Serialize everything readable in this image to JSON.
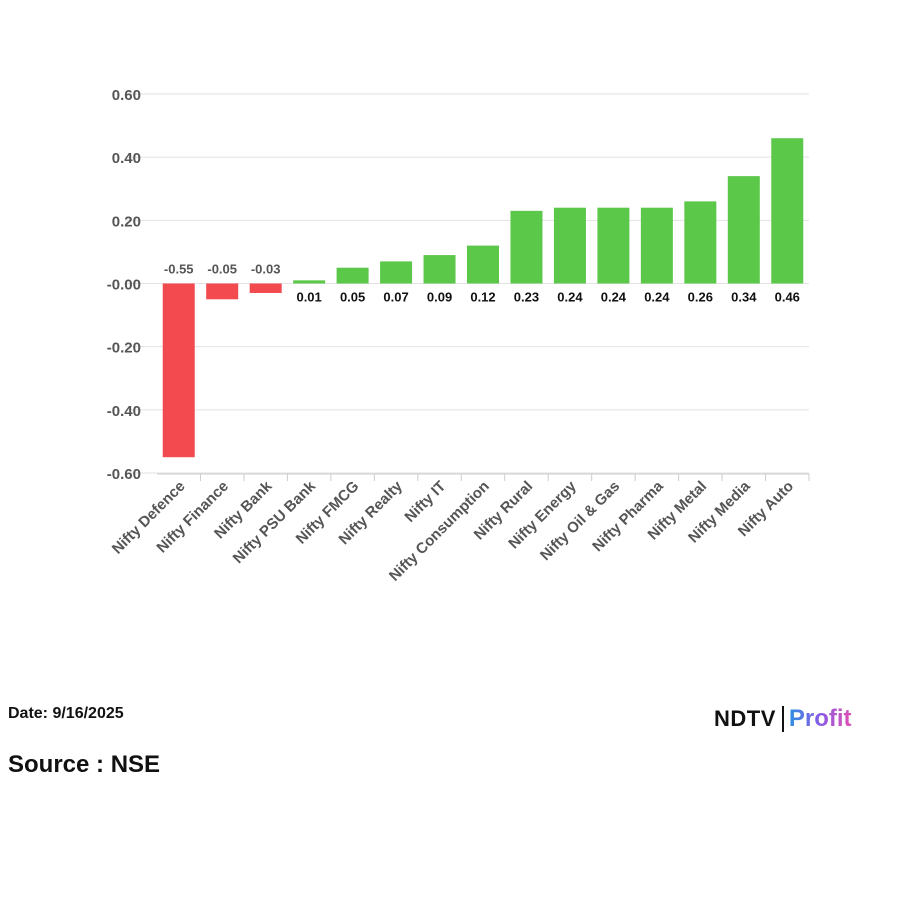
{
  "chart_data": {
    "type": "bar",
    "categories": [
      "Nifty Defence",
      "Nifty Finance",
      "Nifty Bank",
      "Nifty PSU Bank",
      "Nifty FMCG",
      "Nifty Realty",
      "Nifty IT",
      "Nifty Consumption",
      "Nifty Rural",
      "Nifty Energy",
      "Nifty Oil & Gas",
      "Nifty Pharma",
      "Nifty Metal",
      "Nifty Media",
      "Nifty Auto"
    ],
    "values": [
      -0.55,
      -0.05,
      -0.03,
      0.01,
      0.05,
      0.07,
      0.09,
      0.12,
      0.23,
      0.24,
      0.24,
      0.24,
      0.26,
      0.34,
      0.46
    ],
    "data_labels": [
      "-0.55",
      "-0.05",
      "-0.03",
      "0.01",
      "0.05",
      "0.07",
      "0.09",
      "0.12",
      "0.23",
      "0.24",
      "0.24",
      "0.24",
      "0.26",
      "0.34",
      "0.46"
    ],
    "ylim": [
      -0.6,
      0.6
    ],
    "yticks": [
      0.6,
      0.4,
      0.2,
      0.0,
      -0.2,
      -0.4,
      -0.6
    ],
    "ytick_labels": [
      "0.60",
      "0.40",
      "0.20",
      "-0.00",
      "-0.20",
      "-0.40",
      "-0.60"
    ],
    "grid": true,
    "colors": {
      "positive": "#5cc84a",
      "negative": "#f24a4f",
      "grid": "#e2e2e2",
      "axis_text": "#555555",
      "label_negative": "#555555",
      "label_positive": "#111111"
    }
  },
  "footer": {
    "date": "Date: 9/16/2025",
    "source": "Source : NSE"
  },
  "brand": {
    "ndtv": "NDTV",
    "profit": "Profit"
  }
}
